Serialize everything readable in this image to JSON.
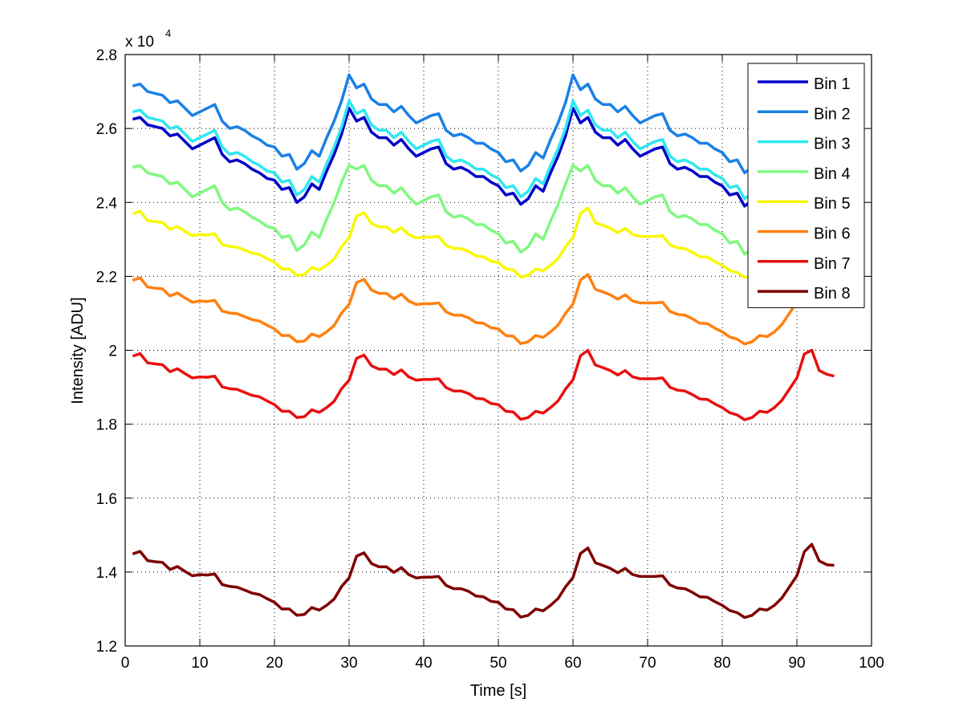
{
  "chart_data": {
    "type": "line",
    "title": "",
    "xlabel": "Time [s]",
    "ylabel": "Intensity [ADU]",
    "y_multiplier": "x 10",
    "y_multiplier_exp": "4",
    "xlim": [
      0,
      100
    ],
    "ylim": [
      1.2,
      2.8
    ],
    "xticks": [
      "0",
      "10",
      "20",
      "30",
      "40",
      "50",
      "60",
      "70",
      "80",
      "90",
      "100"
    ],
    "yticks": [
      "1.2",
      "1.4",
      "1.6",
      "1.8",
      "2",
      "2.2",
      "2.4",
      "2.6",
      "2.8"
    ],
    "grid": true,
    "legend_position": "top-right",
    "x_start": 1,
    "x_step": 1,
    "series": [
      {
        "name": "Bin 1",
        "color": "#0000c8",
        "values": [
          2.625,
          2.63,
          2.61,
          2.605,
          2.6,
          2.58,
          2.585,
          2.565,
          2.545,
          2.555,
          2.565,
          2.575,
          2.53,
          2.51,
          2.515,
          2.505,
          2.49,
          2.48,
          2.465,
          2.46,
          2.435,
          2.44,
          2.4,
          2.415,
          2.45,
          2.435,
          2.485,
          2.53,
          2.585,
          2.655,
          2.62,
          2.63,
          2.59,
          2.575,
          2.575,
          2.555,
          2.57,
          2.545,
          2.525,
          2.535,
          2.545,
          2.55,
          2.505,
          2.49,
          2.495,
          2.485,
          2.47,
          2.47,
          2.455,
          2.445,
          2.42,
          2.425,
          2.395,
          2.41,
          2.445,
          2.43,
          2.48,
          2.525,
          2.58,
          2.655,
          2.615,
          2.63,
          2.59,
          2.575,
          2.575,
          2.555,
          2.57,
          2.545,
          2.525,
          2.535,
          2.545,
          2.55,
          2.505,
          2.49,
          2.495,
          2.485,
          2.47,
          2.47,
          2.455,
          2.445,
          2.42,
          2.425,
          2.39,
          2.405,
          2.44,
          2.43,
          2.48,
          2.525,
          2.58,
          2.63,
          2.62,
          2.65,
          2.6,
          2.59,
          2.585
        ]
      },
      {
        "name": "Bin 2",
        "color": "#1a80e6",
        "values": [
          2.715,
          2.72,
          2.7,
          2.695,
          2.69,
          2.67,
          2.675,
          2.655,
          2.635,
          2.645,
          2.655,
          2.665,
          2.62,
          2.6,
          2.605,
          2.595,
          2.58,
          2.57,
          2.555,
          2.55,
          2.525,
          2.53,
          2.49,
          2.505,
          2.54,
          2.525,
          2.575,
          2.62,
          2.675,
          2.745,
          2.71,
          2.72,
          2.68,
          2.665,
          2.665,
          2.645,
          2.66,
          2.635,
          2.615,
          2.625,
          2.635,
          2.64,
          2.595,
          2.58,
          2.585,
          2.575,
          2.56,
          2.56,
          2.545,
          2.535,
          2.51,
          2.515,
          2.485,
          2.5,
          2.535,
          2.52,
          2.57,
          2.615,
          2.67,
          2.745,
          2.705,
          2.72,
          2.68,
          2.665,
          2.665,
          2.645,
          2.66,
          2.635,
          2.615,
          2.625,
          2.635,
          2.64,
          2.595,
          2.58,
          2.585,
          2.575,
          2.56,
          2.56,
          2.545,
          2.535,
          2.51,
          2.515,
          2.48,
          2.495,
          2.53,
          2.52,
          2.57,
          2.615,
          2.67,
          2.72,
          2.71,
          2.74,
          2.69,
          2.68,
          2.675
        ]
      },
      {
        "name": "Bin 3",
        "color": "#2ee8f0",
        "values": [
          2.645,
          2.65,
          2.63,
          2.625,
          2.62,
          2.6,
          2.605,
          2.585,
          2.565,
          2.575,
          2.585,
          2.595,
          2.55,
          2.53,
          2.535,
          2.525,
          2.51,
          2.5,
          2.485,
          2.48,
          2.455,
          2.46,
          2.42,
          2.435,
          2.47,
          2.455,
          2.505,
          2.55,
          2.605,
          2.675,
          2.64,
          2.65,
          2.61,
          2.595,
          2.595,
          2.575,
          2.59,
          2.565,
          2.545,
          2.555,
          2.565,
          2.57,
          2.525,
          2.51,
          2.515,
          2.505,
          2.49,
          2.49,
          2.475,
          2.465,
          2.44,
          2.445,
          2.415,
          2.43,
          2.465,
          2.45,
          2.5,
          2.545,
          2.6,
          2.675,
          2.635,
          2.65,
          2.61,
          2.595,
          2.595,
          2.575,
          2.59,
          2.565,
          2.545,
          2.555,
          2.565,
          2.57,
          2.525,
          2.51,
          2.515,
          2.505,
          2.49,
          2.49,
          2.475,
          2.465,
          2.44,
          2.445,
          2.41,
          2.425,
          2.46,
          2.45,
          2.5,
          2.545,
          2.6,
          2.65,
          2.64,
          2.67,
          2.62,
          2.61,
          2.605
        ]
      },
      {
        "name": "Bin 4",
        "color": "#80f880",
        "values": [
          2.495,
          2.5,
          2.48,
          2.475,
          2.47,
          2.45,
          2.455,
          2.435,
          2.415,
          2.425,
          2.435,
          2.445,
          2.4,
          2.38,
          2.385,
          2.375,
          2.36,
          2.35,
          2.335,
          2.33,
          2.305,
          2.31,
          2.27,
          2.285,
          2.32,
          2.305,
          2.355,
          2.4,
          2.455,
          2.5,
          2.49,
          2.5,
          2.46,
          2.445,
          2.445,
          2.425,
          2.44,
          2.415,
          2.395,
          2.405,
          2.415,
          2.42,
          2.375,
          2.36,
          2.365,
          2.355,
          2.34,
          2.34,
          2.325,
          2.315,
          2.29,
          2.295,
          2.265,
          2.28,
          2.315,
          2.3,
          2.35,
          2.395,
          2.45,
          2.5,
          2.485,
          2.5,
          2.46,
          2.445,
          2.445,
          2.425,
          2.44,
          2.415,
          2.395,
          2.405,
          2.415,
          2.42,
          2.375,
          2.36,
          2.365,
          2.355,
          2.34,
          2.34,
          2.325,
          2.315,
          2.29,
          2.295,
          2.26,
          2.275,
          2.31,
          2.3,
          2.35,
          2.395,
          2.45,
          2.5,
          2.49,
          2.52,
          2.47,
          2.46,
          2.455
        ]
      },
      {
        "name": "Bin 5",
        "color": "#f8f800",
        "values": [
          2.369,
          2.376,
          2.351,
          2.348,
          2.346,
          2.327,
          2.335,
          2.322,
          2.31,
          2.313,
          2.312,
          2.315,
          2.286,
          2.281,
          2.279,
          2.271,
          2.263,
          2.259,
          2.248,
          2.238,
          2.22,
          2.22,
          2.203,
          2.205,
          2.224,
          2.217,
          2.23,
          2.247,
          2.281,
          2.304,
          2.363,
          2.372,
          2.343,
          2.334,
          2.334,
          2.319,
          2.332,
          2.313,
          2.304,
          2.306,
          2.306,
          2.308,
          2.284,
          2.275,
          2.275,
          2.268,
          2.255,
          2.253,
          2.241,
          2.238,
          2.22,
          2.218,
          2.198,
          2.203,
          2.22,
          2.215,
          2.23,
          2.248,
          2.28,
          2.305,
          2.37,
          2.385,
          2.345,
          2.338,
          2.33,
          2.318,
          2.33,
          2.313,
          2.308,
          2.308,
          2.308,
          2.31,
          2.285,
          2.277,
          2.275,
          2.265,
          2.253,
          2.252,
          2.24,
          2.23,
          2.216,
          2.21,
          2.197,
          2.203,
          2.22,
          2.217,
          2.23,
          2.25,
          2.28,
          2.31,
          2.375,
          2.395,
          2.35,
          2.34,
          2.338
        ]
      },
      {
        "name": "Bin 6",
        "color": "#ff8010",
        "values": [
          2.189,
          2.196,
          2.171,
          2.168,
          2.166,
          2.147,
          2.155,
          2.142,
          2.13,
          2.133,
          2.132,
          2.135,
          2.106,
          2.101,
          2.099,
          2.091,
          2.083,
          2.079,
          2.068,
          2.058,
          2.04,
          2.04,
          2.023,
          2.025,
          2.044,
          2.037,
          2.05,
          2.067,
          2.101,
          2.124,
          2.183,
          2.192,
          2.163,
          2.154,
          2.154,
          2.139,
          2.152,
          2.133,
          2.124,
          2.126,
          2.126,
          2.128,
          2.104,
          2.095,
          2.095,
          2.088,
          2.075,
          2.073,
          2.061,
          2.058,
          2.04,
          2.038,
          2.018,
          2.023,
          2.04,
          2.035,
          2.05,
          2.068,
          2.1,
          2.125,
          2.19,
          2.205,
          2.165,
          2.158,
          2.15,
          2.138,
          2.15,
          2.133,
          2.128,
          2.128,
          2.128,
          2.13,
          2.105,
          2.097,
          2.095,
          2.085,
          2.073,
          2.072,
          2.06,
          2.05,
          2.036,
          2.03,
          2.017,
          2.023,
          2.04,
          2.037,
          2.05,
          2.07,
          2.1,
          2.13,
          2.195,
          2.215,
          2.17,
          2.16,
          2.158
        ]
      },
      {
        "name": "Bin 7",
        "color": "#e81010",
        "values": [
          1.984,
          1.991,
          1.966,
          1.963,
          1.961,
          1.942,
          1.95,
          1.937,
          1.925,
          1.928,
          1.927,
          1.93,
          1.901,
          1.896,
          1.894,
          1.886,
          1.878,
          1.874,
          1.863,
          1.853,
          1.835,
          1.835,
          1.818,
          1.82,
          1.839,
          1.832,
          1.845,
          1.862,
          1.896,
          1.919,
          1.978,
          1.987,
          1.958,
          1.949,
          1.949,
          1.934,
          1.947,
          1.928,
          1.919,
          1.921,
          1.921,
          1.923,
          1.899,
          1.89,
          1.89,
          1.883,
          1.87,
          1.868,
          1.856,
          1.853,
          1.835,
          1.833,
          1.813,
          1.818,
          1.835,
          1.83,
          1.845,
          1.863,
          1.895,
          1.92,
          1.985,
          2.0,
          1.96,
          1.953,
          1.945,
          1.933,
          1.945,
          1.928,
          1.923,
          1.923,
          1.923,
          1.925,
          1.9,
          1.892,
          1.89,
          1.88,
          1.868,
          1.867,
          1.855,
          1.845,
          1.831,
          1.825,
          1.812,
          1.818,
          1.835,
          1.832,
          1.845,
          1.865,
          1.895,
          1.925,
          1.99,
          2.0,
          1.945,
          1.935,
          1.93
        ]
      },
      {
        "name": "Bin 8",
        "color": "#800000",
        "values": [
          1.449,
          1.456,
          1.431,
          1.428,
          1.426,
          1.407,
          1.415,
          1.402,
          1.39,
          1.393,
          1.392,
          1.395,
          1.366,
          1.361,
          1.359,
          1.351,
          1.343,
          1.339,
          1.328,
          1.318,
          1.3,
          1.3,
          1.283,
          1.285,
          1.304,
          1.297,
          1.31,
          1.327,
          1.361,
          1.384,
          1.443,
          1.452,
          1.423,
          1.414,
          1.414,
          1.399,
          1.412,
          1.393,
          1.384,
          1.386,
          1.386,
          1.388,
          1.364,
          1.355,
          1.355,
          1.348,
          1.335,
          1.333,
          1.321,
          1.318,
          1.3,
          1.298,
          1.278,
          1.283,
          1.3,
          1.295,
          1.31,
          1.328,
          1.36,
          1.385,
          1.45,
          1.465,
          1.425,
          1.418,
          1.41,
          1.398,
          1.41,
          1.393,
          1.388,
          1.388,
          1.388,
          1.39,
          1.365,
          1.357,
          1.355,
          1.345,
          1.333,
          1.332,
          1.32,
          1.31,
          1.296,
          1.29,
          1.277,
          1.283,
          1.3,
          1.297,
          1.31,
          1.33,
          1.36,
          1.39,
          1.455,
          1.475,
          1.43,
          1.42,
          1.418
        ]
      }
    ]
  }
}
